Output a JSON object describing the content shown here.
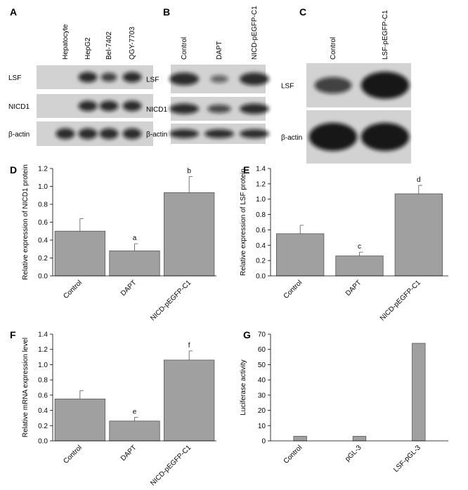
{
  "blots": [
    {
      "panel": "A",
      "lanes": [
        "Hepatocyte",
        "HepG2",
        "Bel-7402",
        "QGY-7703"
      ],
      "rows": [
        "LSF",
        "NICD1",
        "β-actin"
      ]
    },
    {
      "panel": "B",
      "lanes": [
        "Control",
        "DAPT",
        "NICD-pEGFP-C1"
      ],
      "rows": [
        "LSF",
        "NICD1",
        "β-actin"
      ]
    },
    {
      "panel": "C",
      "lanes": [
        "Control",
        "LSF-pEGFP-C1"
      ],
      "rows": [
        "LSF",
        "β-actin"
      ]
    }
  ],
  "chart_data": [
    {
      "type": "bar",
      "panel": "D",
      "ylabel": "Relative expression of NICD1 protein",
      "categories": [
        "Control",
        "DAPT",
        "NICD-pEGFP-C1"
      ],
      "values": [
        0.5,
        0.28,
        0.93
      ],
      "errors": [
        0.14,
        0.08,
        0.18
      ],
      "bar_labels": [
        null,
        "a",
        "b"
      ],
      "color": "#a0a0a0",
      "ylim": [
        0,
        1.2
      ],
      "yticks": [
        {
          "value": 0,
          "label": "0.0"
        },
        0.2,
        0.4,
        0.6,
        0.8,
        {
          "value": 1,
          "label": "1.0"
        },
        1.2
      ]
    },
    {
      "type": "bar",
      "panel": "E",
      "ylabel": "Relative expression of LSF protein",
      "categories": [
        "Control",
        "DAPT",
        "NICD-pEGFP-C1"
      ],
      "values": [
        0.55,
        0.26,
        1.07
      ],
      "errors": [
        0.11,
        0.05,
        0.11
      ],
      "bar_labels": [
        null,
        "c",
        "d"
      ],
      "color": "#a0a0a0",
      "ylim": [
        0,
        1.4
      ],
      "yticks": [
        {
          "value": 0,
          "label": "0.0"
        },
        0.2,
        0.4,
        0.6,
        0.8,
        {
          "value": 1,
          "label": "1.0"
        },
        1.2,
        1.4
      ]
    },
    {
      "type": "bar",
      "panel": "F",
      "ylabel": "Relative mRNA expression level",
      "categories": [
        "Control",
        "DAPT",
        "NICD-pEGFP-C1"
      ],
      "values": [
        0.55,
        0.26,
        1.06
      ],
      "errors": [
        0.11,
        0.05,
        0.12
      ],
      "bar_labels": [
        null,
        "e",
        "f"
      ],
      "color": "#a0a0a0",
      "ylim": [
        0,
        1.4
      ],
      "yticks": [
        {
          "value": 0,
          "label": "0.0"
        },
        0.2,
        0.4,
        0.6,
        0.8,
        {
          "value": 1,
          "label": "1.0"
        },
        1.2,
        1.4
      ]
    },
    {
      "type": "bar",
      "panel": "G",
      "ylabel": "Luciferase activity",
      "categories": [
        "Control",
        "pGL-3",
        "LSF-pGL-3"
      ],
      "values": [
        3,
        3,
        64
      ],
      "color": "#a0a0a0",
      "ylim": [
        0,
        70
      ],
      "yticks": [
        0,
        10,
        20,
        30,
        40,
        50,
        60,
        70
      ]
    }
  ]
}
